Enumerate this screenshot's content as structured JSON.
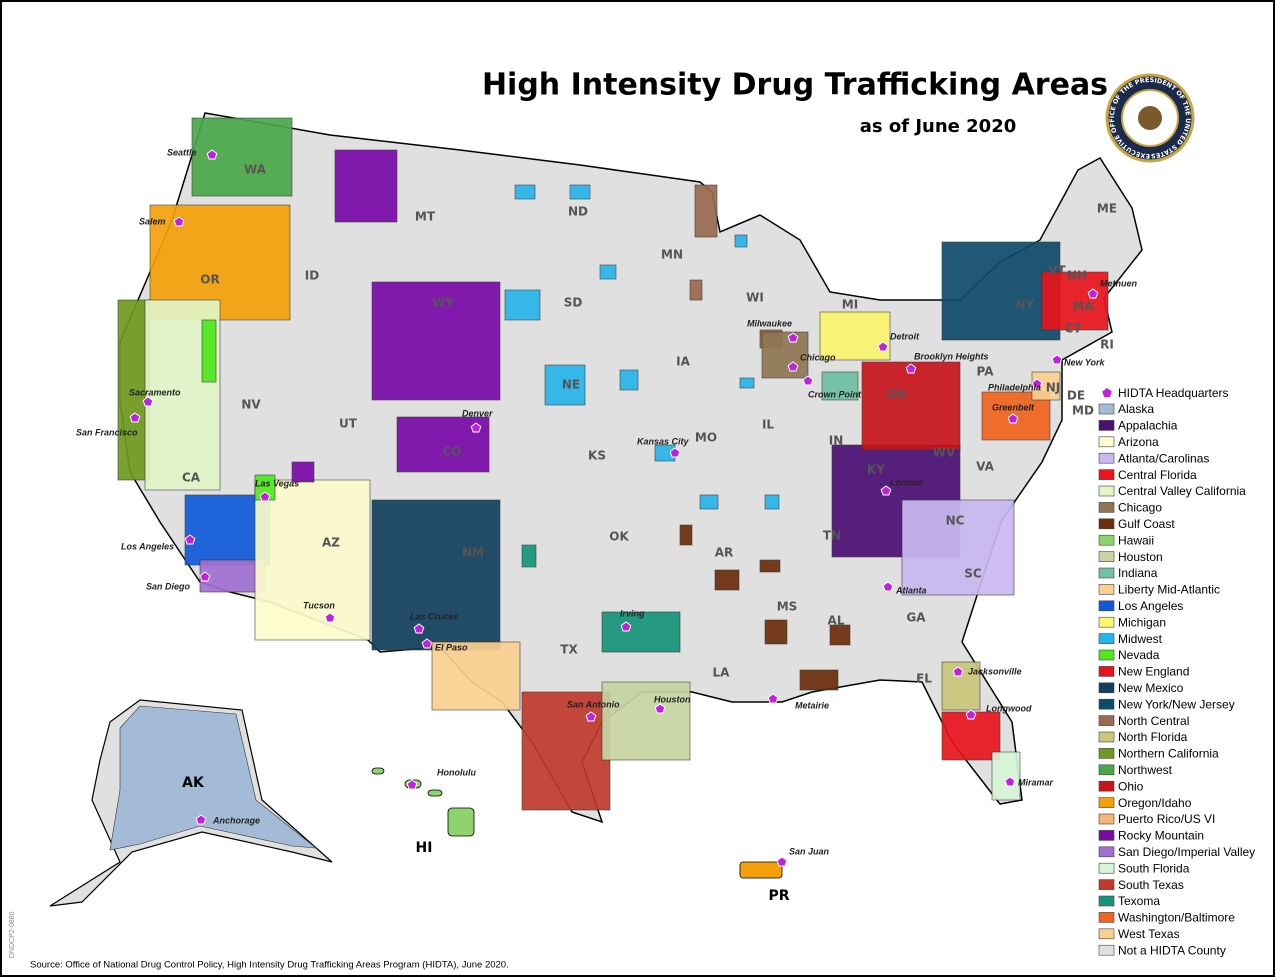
{
  "title": "High Intensity Drug Trafficking Areas",
  "subtitle": "as of June 2020",
  "seal": "EXECUTIVE OFFICE OF THE PRESIDENT OF THE UNITED STATES",
  "source": "Source: Office of National Drug Control Policy, High Intensity Drug Trafficking Areas Program (HIDTA), June 2020.",
  "code": "ONDCP2-0880",
  "legend": {
    "headquarters": "HIDTA Headquarters",
    "items": [
      {
        "label": "Alaska",
        "color": "#a3bbd6"
      },
      {
        "label": "Appalachia",
        "color": "#4b0f73"
      },
      {
        "label": "Arizona",
        "color": "#fcfccc"
      },
      {
        "label": "Atlanta/Carolinas",
        "color": "#c9b8f0"
      },
      {
        "label": "Central Florida",
        "color": "#e8141c"
      },
      {
        "label": "Central Valley California",
        "color": "#e2f5c6"
      },
      {
        "label": "Chicago",
        "color": "#8e7652"
      },
      {
        "label": "Gulf Coast",
        "color": "#6b2d0c"
      },
      {
        "label": "Hawaii",
        "color": "#8ed36e"
      },
      {
        "label": "Houston",
        "color": "#c8d4a2"
      },
      {
        "label": "Indiana",
        "color": "#6fc1a4"
      },
      {
        "label": "Liberty Mid-Atlantic",
        "color": "#fad090"
      },
      {
        "label": "Los Angeles",
        "color": "#0f5ad8"
      },
      {
        "label": "Michigan",
        "color": "#faf56e"
      },
      {
        "label": "Midwest",
        "color": "#27b4e8"
      },
      {
        "label": "Nevada",
        "color": "#4ee81c"
      },
      {
        "label": "New England",
        "color": "#e8141c"
      },
      {
        "label": "New Mexico",
        "color": "#123f5e"
      },
      {
        "label": "New York/New Jersey",
        "color": "#0e4a6a"
      },
      {
        "label": "North Central",
        "color": "#9a6a4e"
      },
      {
        "label": "North Florida",
        "color": "#c9c77a"
      },
      {
        "label": "Northern California",
        "color": "#6f9a1e"
      },
      {
        "label": "Northwest",
        "color": "#4aa84a"
      },
      {
        "label": "Ohio",
        "color": "#c8141c"
      },
      {
        "label": "Oregon/Idaho",
        "color": "#f5a00a"
      },
      {
        "label": "Puerto Rico/US VI",
        "color": "#f5b47a"
      },
      {
        "label": "Rocky Mountain",
        "color": "#7a0aa8"
      },
      {
        "label": "San Diego/Imperial Valley",
        "color": "#a070d0"
      },
      {
        "label": "South Florida",
        "color": "#d8f5d8"
      },
      {
        "label": "South Texas",
        "color": "#c0392b"
      },
      {
        "label": "Texoma",
        "color": "#17947a"
      },
      {
        "label": "Washington/Baltimore",
        "color": "#f0641e"
      },
      {
        "label": "West Texas",
        "color": "#fad090"
      },
      {
        "label": "Not a HIDTA County",
        "color": "#e0e0e0"
      }
    ]
  },
  "state_labels": [
    "WA",
    "OR",
    "ID",
    "MT",
    "ND",
    "MN",
    "WI",
    "MI",
    "SD",
    "WY",
    "NV",
    "UT",
    "CO",
    "NE",
    "IA",
    "IL",
    "IN",
    "OH",
    "KS",
    "MO",
    "KY",
    "WV",
    "VA",
    "CA",
    "AZ",
    "NM",
    "OK",
    "AR",
    "TN",
    "NC",
    "SC",
    "GA",
    "AL",
    "MS",
    "LA",
    "TX",
    "FL",
    "PA",
    "NY",
    "VT",
    "NH",
    "MA",
    "CT",
    "RI",
    "NJ",
    "DE",
    "MD",
    "ME",
    "AK",
    "HI",
    "PR"
  ],
  "cities": [
    "Seattle",
    "Salem",
    "Sacramento",
    "San Francisco",
    "Las Vegas",
    "Los Angeles",
    "San Diego",
    "Tucson",
    "Denver",
    "Las Cruces",
    "El Paso",
    "Kansas City",
    "Irving",
    "San Antonio",
    "Houston",
    "Metairie",
    "Milwaukee",
    "Chicago",
    "Crown Point",
    "Detroit",
    "Brooklyn Heights",
    "Philadelphia",
    "Greenbelt",
    "New York",
    "Methuen",
    "London",
    "Atlanta",
    "Jacksonville",
    "Longwood",
    "Miramar",
    "Anchorage",
    "Honolulu",
    "San Juan"
  ]
}
